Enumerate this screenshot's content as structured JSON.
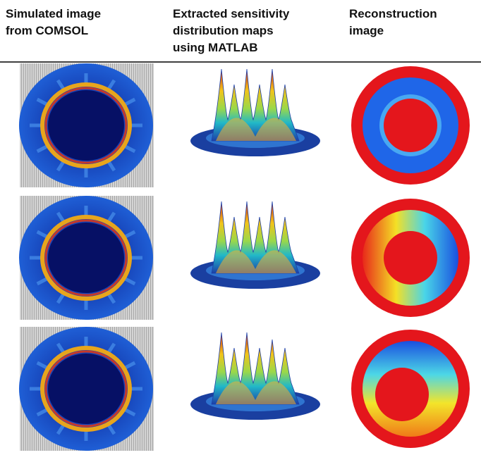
{
  "table": {
    "header": [
      [
        "Simulated image",
        "from COMSOL"
      ],
      [
        "Extracted sensitivity",
        "distribution maps",
        "using MATLAB"
      ],
      [
        "Reconstruction",
        "image"
      ]
    ]
  }
}
